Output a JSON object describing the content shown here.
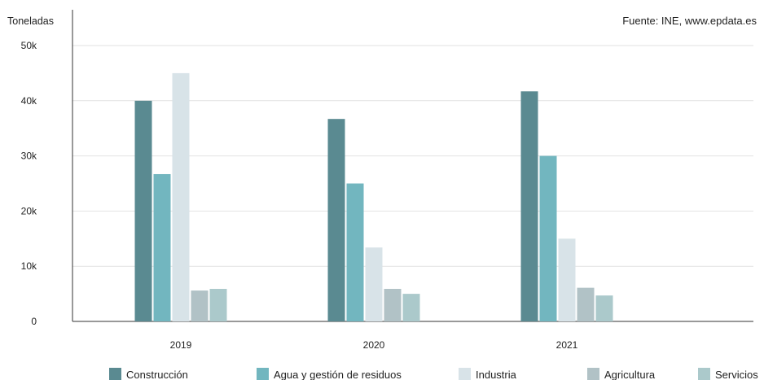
{
  "chart_data": {
    "type": "bar",
    "ylabel": "Toneladas",
    "source": "Fuente: INE, www.epdata.es",
    "categories": [
      "2019",
      "2020",
      "2021"
    ],
    "series": [
      {
        "name": "Construcción",
        "color": "#5a8a91",
        "values": [
          40000,
          36700,
          41700
        ]
      },
      {
        "name": "Agua y gestión de residuos",
        "color": "#72b6bf",
        "values": [
          26700,
          25000,
          30000
        ]
      },
      {
        "name": "Industria",
        "color": "#d8e3e8",
        "values": [
          45000,
          13400,
          15000
        ]
      },
      {
        "name": "Agricultura",
        "color": "#b1c2c6",
        "values": [
          5600,
          5900,
          6100
        ]
      },
      {
        "name": "Servicios",
        "color": "#abc9cb",
        "values": [
          5900,
          5000,
          4700
        ]
      }
    ],
    "ylim": [
      0,
      50000
    ],
    "yticks": [
      0,
      10000,
      20000,
      30000,
      40000,
      50000
    ],
    "ytick_labels": [
      "0",
      "10k",
      "20k",
      "30k",
      "40k",
      "50k"
    ],
    "grid": true,
    "legend_position": "bottom"
  }
}
